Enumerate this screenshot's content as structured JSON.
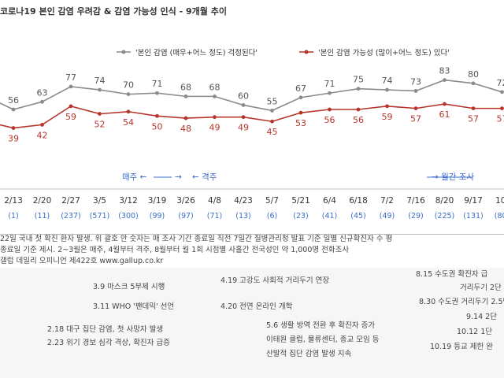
{
  "title": "코로나19 본인 감염 우려감 & 감염 가능성 인식 - 9개월 추이",
  "chart_data": {
    "type": "line",
    "categories": [
      "2/13",
      "2/20",
      "2/27",
      "3/5",
      "3/12",
      "3/19",
      "3/26",
      "4/8",
      "4/23",
      "5/7",
      "5/21",
      "6/4",
      "6/18",
      "7/2",
      "7/16",
      "8/20",
      "9/17",
      "10/"
    ],
    "sub_labels": [
      "(1)",
      "(11)",
      "(237)",
      "(571)",
      "(300)",
      "(99)",
      "(97)",
      "(71)",
      "(13)",
      "(6)",
      "(23)",
      "(41)",
      "(45)",
      "(49)",
      "(29)",
      "(225)",
      "(131)",
      "(80)"
    ],
    "series": [
      {
        "name": "'본인 감염 (매우+어느 정도) 걱정된다'",
        "color": "#8a8a8a",
        "values": [
          56,
          63,
          77,
          74,
          70,
          71,
          68,
          68,
          60,
          55,
          67,
          71,
          75,
          74,
          73,
          83,
          80,
          72
        ]
      },
      {
        "name": "'본인 감염 가능성 (많이+어느 정도) 있다'",
        "color": "#b5352b",
        "values": [
          39,
          42,
          59,
          52,
          54,
          50,
          48,
          49,
          49,
          45,
          53,
          56,
          56,
          59,
          57,
          61,
          57,
          57
        ]
      }
    ],
    "ylim": [
      30,
      95
    ],
    "legend_position": "top",
    "period_labels": [
      "매주",
      "격주",
      "월간 조사"
    ]
  },
  "notes": [
    "22일 국내 첫 확진 환자 발생. 위 괄호 안 숫자는 매 조사 기간 종료일 직전 7일간 질병관리청 발표 기준 일별 신규확진자 수 평",
    "종료일 기준 제시. 2~3월은 매주, 4월부터 격주, 8월부터 월 1회 시점별 사흘간 전국성인 약 1,000명 전화조사",
    "갤럽 데일리 오피니언 제422호 www.gallup.co.kr"
  ],
  "events": [
    {
      "text": "3.9 마스크 5부제 시행"
    },
    {
      "text": "3.11 WHO '팬데믹' 선언"
    },
    {
      "text": "4.19 고강도 사회적 거리두기 연장"
    },
    {
      "text": "4.20 전면 온라인 개학"
    },
    {
      "text": "2.18 대구 집단 감염, 첫 사망자 발생"
    },
    {
      "text": "2.23 위기 경보 심각 격상, 확진자 급증"
    },
    {
      "text": "5.6 생활 방역 전환 후 확진자 증가"
    },
    {
      "text": "이태원 클럽, 물류센터, 종교 모임 등"
    },
    {
      "text": "산발적 집단 감염 발생 지속"
    },
    {
      "text": "8.15 수도권 확진자 급"
    },
    {
      "text": "거리두기 2단"
    },
    {
      "text": "8.30 수도권 거리두기 2.5단"
    },
    {
      "text": "9.14 2단"
    },
    {
      "text": "10.12 1단"
    },
    {
      "text": "10.19 등교 제한 완"
    }
  ]
}
